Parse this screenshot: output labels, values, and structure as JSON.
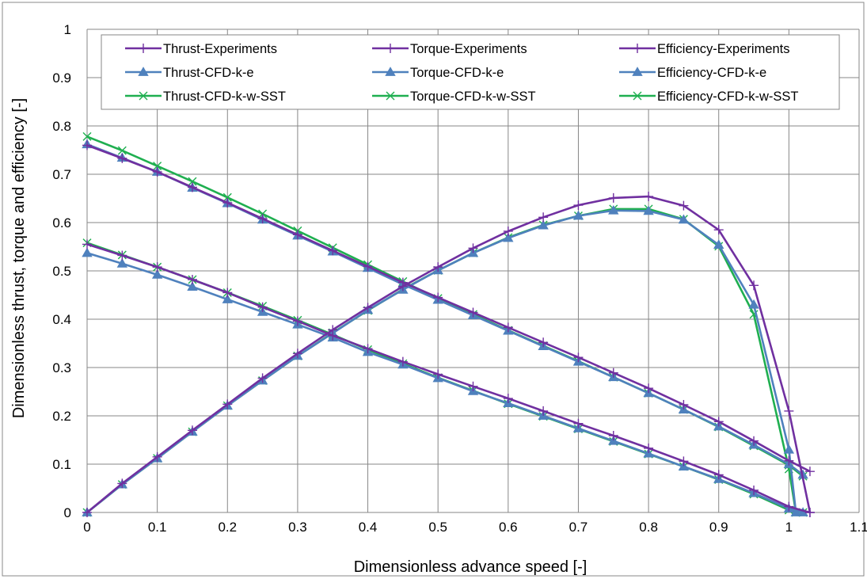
{
  "chart_data": {
    "type": "line",
    "title": "",
    "xlabel": "Dimensionless advance speed [-]",
    "ylabel": "Dimensionless thrust, torque and efficiency [-]",
    "xlim": [
      0,
      1.1
    ],
    "ylim": [
      0,
      1
    ],
    "x_ticks": [
      "0",
      "0.1",
      "0.2",
      "0.3",
      "0.4",
      "0.5",
      "0.6",
      "0.7",
      "0.8",
      "0.9",
      "1",
      "1.1"
    ],
    "y_ticks": [
      "0",
      "0.1",
      "0.2",
      "0.3",
      "0.4",
      "0.5",
      "0.6",
      "0.7",
      "0.8",
      "0.9",
      "1"
    ],
    "grid": true,
    "legend_position": "top",
    "colors": {
      "experiments": "#7030A0",
      "cfd_k_e": "#4F81BD",
      "cfd_k_w_sst": "#1FAF50"
    },
    "series": [
      {
        "name": "Thrust-Experiments",
        "color": "#7030A0",
        "marker": "plus",
        "x": [
          0,
          0.05,
          0.1,
          0.15,
          0.2,
          0.25,
          0.3,
          0.35,
          0.4,
          0.45,
          0.5,
          0.55,
          0.6,
          0.65,
          0.7,
          0.75,
          0.8,
          0.85,
          0.9,
          0.95,
          1.0,
          1.03
        ],
        "y": [
          0.76,
          0.733,
          0.705,
          0.673,
          0.641,
          0.608,
          0.575,
          0.542,
          0.509,
          0.476,
          0.445,
          0.414,
          0.383,
          0.352,
          0.321,
          0.289,
          0.257,
          0.223,
          0.188,
          0.148,
          0.107,
          0.085
        ]
      },
      {
        "name": "Torque-Experiments",
        "color": "#7030A0",
        "marker": "plus",
        "x": [
          0,
          0.05,
          0.1,
          0.15,
          0.2,
          0.25,
          0.3,
          0.35,
          0.4,
          0.45,
          0.5,
          0.55,
          0.6,
          0.65,
          0.7,
          0.75,
          0.8,
          0.85,
          0.9,
          0.95,
          1.0,
          1.03
        ],
        "y": [
          0.555,
          0.532,
          0.508,
          0.482,
          0.455,
          0.425,
          0.396,
          0.366,
          0.339,
          0.312,
          0.286,
          0.261,
          0.236,
          0.21,
          0.184,
          0.159,
          0.133,
          0.106,
          0.078,
          0.046,
          0.012,
          0.0
        ]
      },
      {
        "name": "Efficiency-Experiments",
        "color": "#7030A0",
        "marker": "plus",
        "x": [
          0,
          0.05,
          0.1,
          0.15,
          0.2,
          0.25,
          0.3,
          0.35,
          0.4,
          0.45,
          0.5,
          0.55,
          0.6,
          0.65,
          0.7,
          0.75,
          0.8,
          0.85,
          0.9,
          0.95,
          1.0,
          1.03
        ],
        "y": [
          0.0,
          0.06,
          0.115,
          0.17,
          0.224,
          0.278,
          0.329,
          0.378,
          0.424,
          0.468,
          0.508,
          0.547,
          0.582,
          0.611,
          0.636,
          0.651,
          0.654,
          0.635,
          0.585,
          0.47,
          0.21,
          0.0
        ]
      },
      {
        "name": "Thrust-CFD-k-e",
        "color": "#4F81BD",
        "marker": "triangle",
        "x": [
          0,
          0.05,
          0.1,
          0.15,
          0.2,
          0.25,
          0.3,
          0.35,
          0.4,
          0.45,
          0.5,
          0.55,
          0.6,
          0.65,
          0.7,
          0.75,
          0.8,
          0.85,
          0.9,
          0.95,
          1.0,
          1.02
        ],
        "y": [
          0.762,
          0.734,
          0.705,
          0.672,
          0.64,
          0.606,
          0.573,
          0.54,
          0.506,
          0.472,
          0.44,
          0.408,
          0.376,
          0.344,
          0.312,
          0.28,
          0.247,
          0.213,
          0.178,
          0.14,
          0.1,
          0.078
        ]
      },
      {
        "name": "Torque-CFD-k-e",
        "color": "#4F81BD",
        "marker": "triangle",
        "x": [
          0,
          0.05,
          0.1,
          0.15,
          0.2,
          0.25,
          0.3,
          0.35,
          0.4,
          0.45,
          0.5,
          0.55,
          0.6,
          0.65,
          0.7,
          0.75,
          0.8,
          0.85,
          0.9,
          0.95,
          1.0,
          1.02
        ],
        "y": [
          0.537,
          0.515,
          0.492,
          0.467,
          0.441,
          0.415,
          0.389,
          0.362,
          0.332,
          0.306,
          0.278,
          0.251,
          0.226,
          0.2,
          0.174,
          0.148,
          0.122,
          0.095,
          0.069,
          0.04,
          0.008,
          0.0
        ]
      },
      {
        "name": "Efficiency-CFD-k-e",
        "color": "#4F81BD",
        "marker": "triangle",
        "x": [
          0,
          0.05,
          0.1,
          0.15,
          0.2,
          0.25,
          0.3,
          0.35,
          0.4,
          0.45,
          0.5,
          0.55,
          0.6,
          0.65,
          0.7,
          0.75,
          0.8,
          0.85,
          0.9,
          0.95,
          1.0,
          1.01
        ],
        "y": [
          0.0,
          0.058,
          0.112,
          0.167,
          0.221,
          0.273,
          0.324,
          0.371,
          0.419,
          0.461,
          0.501,
          0.537,
          0.568,
          0.594,
          0.614,
          0.625,
          0.624,
          0.606,
          0.554,
          0.43,
          0.13,
          0.0
        ]
      },
      {
        "name": "Thrust-CFD-k-w-SST",
        "color": "#1FAF50",
        "marker": "x",
        "x": [
          0,
          0.05,
          0.1,
          0.15,
          0.2,
          0.25,
          0.3,
          0.35,
          0.4,
          0.45,
          0.5,
          0.55,
          0.6,
          0.65,
          0.7,
          0.75,
          0.8,
          0.85,
          0.9,
          0.95,
          1.0,
          1.02
        ],
        "y": [
          0.778,
          0.749,
          0.717,
          0.685,
          0.652,
          0.618,
          0.583,
          0.548,
          0.513,
          0.478,
          0.443,
          0.41,
          0.377,
          0.345,
          0.313,
          0.28,
          0.247,
          0.213,
          0.177,
          0.138,
          0.098,
          0.075
        ]
      },
      {
        "name": "Torque-CFD-k-w-SST",
        "color": "#1FAF50",
        "marker": "x",
        "x": [
          0,
          0.05,
          0.1,
          0.15,
          0.2,
          0.25,
          0.3,
          0.35,
          0.4,
          0.45,
          0.5,
          0.55,
          0.6,
          0.65,
          0.7,
          0.75,
          0.8,
          0.85,
          0.9,
          0.95,
          1.0,
          1.02
        ],
        "y": [
          0.558,
          0.533,
          0.508,
          0.482,
          0.455,
          0.427,
          0.398,
          0.368,
          0.337,
          0.308,
          0.279,
          0.252,
          0.225,
          0.199,
          0.173,
          0.147,
          0.121,
          0.095,
          0.068,
          0.038,
          0.005,
          0.0
        ]
      },
      {
        "name": "Efficiency-CFD-k-w-SST",
        "color": "#1FAF50",
        "marker": "x",
        "x": [
          0,
          0.05,
          0.1,
          0.15,
          0.2,
          0.25,
          0.3,
          0.35,
          0.4,
          0.45,
          0.5,
          0.55,
          0.6,
          0.65,
          0.7,
          0.75,
          0.8,
          0.85,
          0.9,
          0.95,
          1.0,
          1.01
        ],
        "y": [
          0.0,
          0.058,
          0.112,
          0.167,
          0.221,
          0.273,
          0.324,
          0.372,
          0.418,
          0.462,
          0.501,
          0.537,
          0.569,
          0.595,
          0.614,
          0.628,
          0.628,
          0.607,
          0.551,
          0.41,
          0.09,
          0.0
        ]
      }
    ]
  }
}
